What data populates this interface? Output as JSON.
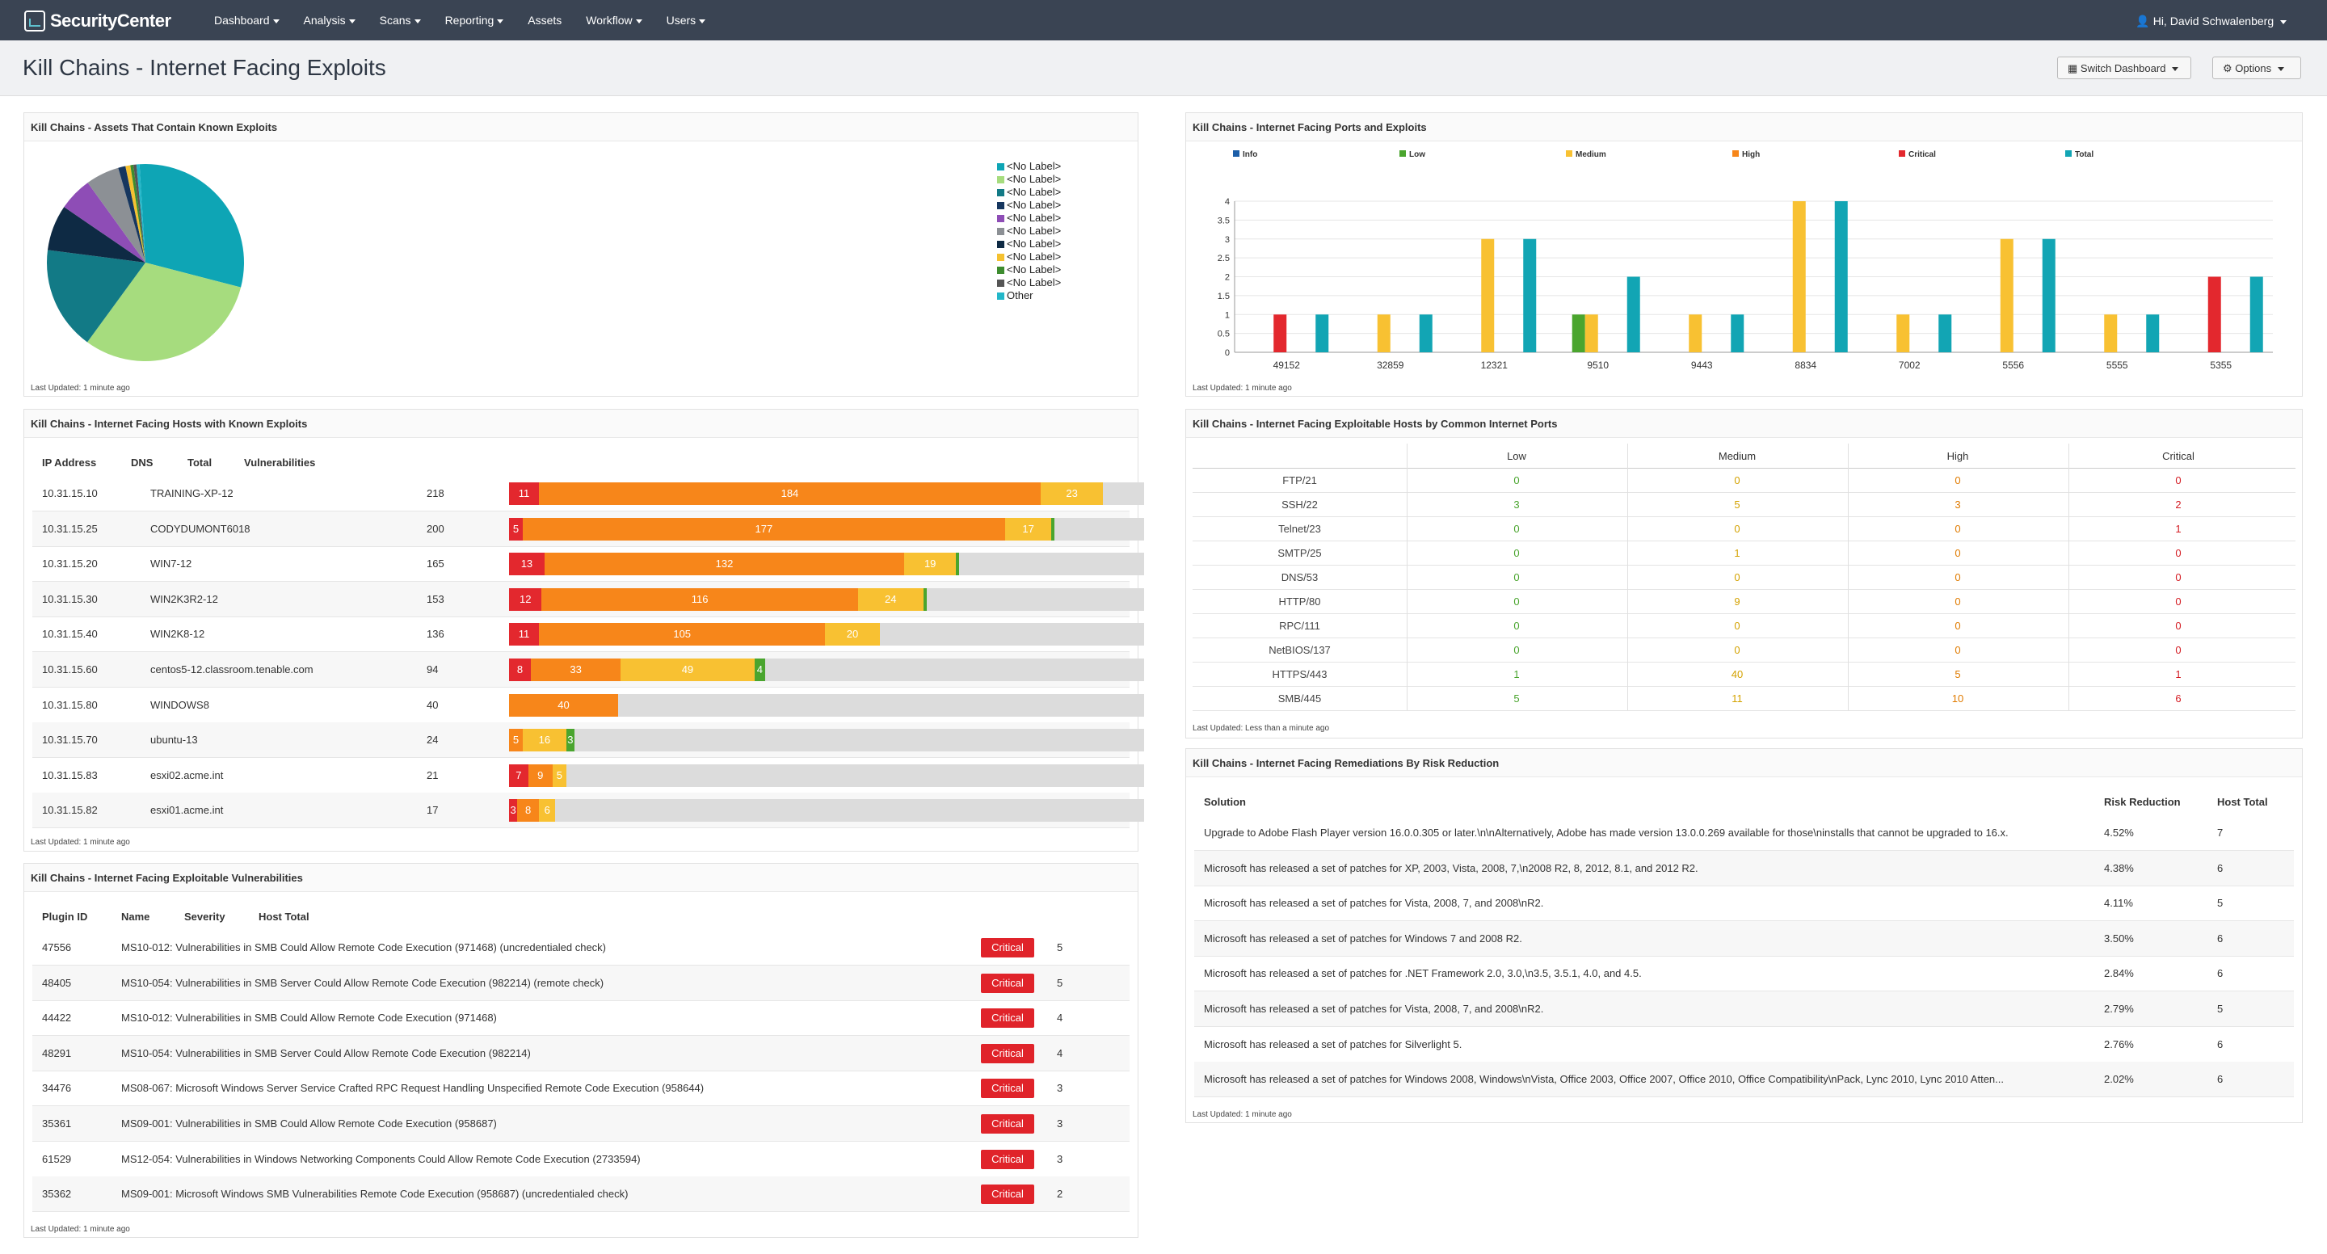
{
  "nav": {
    "brand": "SecurityCenter",
    "menu": [
      "Dashboard",
      "Analysis",
      "Scans",
      "Reporting",
      "Assets",
      "Workflow",
      "Users"
    ],
    "user": "Hi, David Schwalenberg"
  },
  "header": {
    "title": "Kill Chains - Internet Facing Exploits",
    "switch_btn": "Switch Dashboard",
    "options_btn": "Options"
  },
  "pie_panel": {
    "title": "Kill Chains - Assets That Contain Known Exploits",
    "updated": "Last Updated: 1 minute ago",
    "legend": [
      {
        "label": "<No Label>",
        "color": "#0ea5b5"
      },
      {
        "label": "<No Label>",
        "color": "#a6dc7e"
      },
      {
        "label": "<No Label>",
        "color": "#127a86"
      },
      {
        "label": "<No Label>",
        "color": "#16365f"
      },
      {
        "label": "<No Label>",
        "color": "#8e4db6"
      },
      {
        "label": "<No Label>",
        "color": "#8c9095"
      },
      {
        "label": "<No Label>",
        "color": "#0e2a44"
      },
      {
        "label": "<No Label>",
        "color": "#f5c130"
      },
      {
        "label": "<No Label>",
        "color": "#3d8c2f"
      },
      {
        "label": "<No Label>",
        "color": "#555"
      },
      {
        "label": "Other",
        "color": "#23b7c9"
      }
    ]
  },
  "chart_data": {
    "type": "bar",
    "title": "Kill Chains - Internet Facing Ports and Exploits",
    "categories": [
      "49152",
      "32859",
      "12321",
      "9510",
      "9443",
      "8834",
      "7002",
      "5556",
      "5555",
      "5355"
    ],
    "series": [
      {
        "name": "Info",
        "color": "#1c5ea8",
        "values": [
          0,
          0,
          0,
          0,
          0,
          0,
          0,
          0,
          0,
          0
        ]
      },
      {
        "name": "Low",
        "color": "#4aa52e",
        "values": [
          0,
          0,
          0,
          1,
          0,
          0,
          0,
          0,
          0,
          0
        ]
      },
      {
        "name": "Medium",
        "color": "#f8c132",
        "values": [
          0,
          1,
          3,
          1,
          1,
          4,
          1,
          3,
          1,
          0
        ]
      },
      {
        "name": "High",
        "color": "#f7861a",
        "values": [
          0,
          0,
          0,
          0,
          0,
          0,
          0,
          0,
          0,
          0
        ]
      },
      {
        "name": "Critical",
        "color": "#e3282e",
        "values": [
          1,
          0,
          0,
          0,
          0,
          0,
          0,
          0,
          0,
          2
        ]
      },
      {
        "name": "Total",
        "color": "#12a5b4",
        "values": [
          1,
          1,
          3,
          2,
          1,
          4,
          1,
          3,
          1,
          2
        ]
      }
    ],
    "ylim": [
      0,
      4
    ],
    "yticks": [
      "0",
      "0.5",
      "1",
      "1.5",
      "2",
      "2.5",
      "3",
      "3.5",
      "4"
    ],
    "updated": "Last Updated: 1 minute ago"
  },
  "hosts_panel": {
    "title": "Kill Chains - Internet Facing Hosts with Known Exploits",
    "headers": [
      "IP Address",
      "DNS",
      "Total",
      "Vulnerabilities"
    ],
    "max_total": 233,
    "rows": [
      {
        "ip": "10.31.15.10",
        "dns": "TRAINING-XP-12",
        "total": "218",
        "crit": 11,
        "high": 184,
        "med": 23,
        "low": 0
      },
      {
        "ip": "10.31.15.25",
        "dns": "CODYDUMONT6018",
        "total": "200",
        "crit": 5,
        "high": 177,
        "med": 17,
        "low": 1
      },
      {
        "ip": "10.31.15.20",
        "dns": "WIN7-12",
        "total": "165",
        "crit": 13,
        "high": 132,
        "med": 19,
        "low": 1
      },
      {
        "ip": "10.31.15.30",
        "dns": "WIN2K3R2-12",
        "total": "153",
        "crit": 12,
        "high": 116,
        "med": 24,
        "low": 1
      },
      {
        "ip": "10.31.15.40",
        "dns": "WIN2K8-12",
        "total": "136",
        "crit": 11,
        "high": 105,
        "med": 20,
        "low": 0
      },
      {
        "ip": "10.31.15.60",
        "dns": "centos5-12.classroom.tenable.com",
        "total": "94",
        "crit": 8,
        "high": 33,
        "med": 49,
        "low": 4
      },
      {
        "ip": "10.31.15.80",
        "dns": "WINDOWS8",
        "total": "40",
        "crit": 0,
        "high": 40,
        "med": 0,
        "low": 0
      },
      {
        "ip": "10.31.15.70",
        "dns": "ubuntu-13",
        "total": "24",
        "crit": 0,
        "high": 5,
        "med": 16,
        "low": 3
      },
      {
        "ip": "10.31.15.83",
        "dns": "esxi02.acme.int",
        "total": "21",
        "crit": 7,
        "high": 9,
        "med": 5,
        "low": 0
      },
      {
        "ip": "10.31.15.82",
        "dns": "esxi01.acme.int",
        "total": "17",
        "crit": 3,
        "high": 8,
        "med": 6,
        "low": 0
      }
    ],
    "updated": "Last Updated: 1 minute ago"
  },
  "vulns_panel": {
    "title": "Kill Chains - Internet Facing Exploitable Vulnerabilities",
    "headers": [
      "Plugin ID",
      "Name",
      "Severity",
      "Host Total"
    ],
    "rows": [
      {
        "id": "47556",
        "name": "MS10-012: Vulnerabilities in SMB Could Allow Remote Code Execution (971468) (uncredentialed check)",
        "sev": "Critical",
        "hosts": "5"
      },
      {
        "id": "48405",
        "name": "MS10-054: Vulnerabilities in SMB Server Could Allow Remote Code Execution (982214) (remote check)",
        "sev": "Critical",
        "hosts": "5"
      },
      {
        "id": "44422",
        "name": "MS10-012: Vulnerabilities in SMB Could Allow Remote Code Execution (971468)",
        "sev": "Critical",
        "hosts": "4"
      },
      {
        "id": "48291",
        "name": "MS10-054: Vulnerabilities in SMB Server Could Allow Remote Code Execution (982214)",
        "sev": "Critical",
        "hosts": "4"
      },
      {
        "id": "34476",
        "name": "MS08-067: Microsoft Windows Server Service Crafted RPC Request Handling Unspecified Remote Code Execution (958644)",
        "sev": "Critical",
        "hosts": "3"
      },
      {
        "id": "35361",
        "name": "MS09-001: Vulnerabilities in SMB Could Allow Remote Code Execution (958687)",
        "sev": "Critical",
        "hosts": "3"
      },
      {
        "id": "61529",
        "name": "MS12-054: Vulnerabilities in Windows Networking Components Could Allow Remote Code Execution (2733594)",
        "sev": "Critical",
        "hosts": "3"
      },
      {
        "id": "35362",
        "name": "MS09-001: Microsoft Windows SMB Vulnerabilities Remote Code Execution (958687) (uncredentialed check)",
        "sev": "Critical",
        "hosts": "2"
      }
    ],
    "updated": "Last Updated: 1 minute ago"
  },
  "ports_panel": {
    "title": "Kill Chains - Internet Facing Exploitable Hosts by Common Internet Ports",
    "headers": [
      "Low",
      "Medium",
      "High",
      "Critical"
    ],
    "colors": [
      "#4aa52e",
      "#d4a200",
      "#e07b00",
      "#d41b22"
    ],
    "rows": [
      {
        "port": "FTP/21",
        "v": [
          "0",
          "0",
          "0",
          "0"
        ]
      },
      {
        "port": "SSH/22",
        "v": [
          "3",
          "5",
          "3",
          "2"
        ]
      },
      {
        "port": "Telnet/23",
        "v": [
          "0",
          "0",
          "0",
          "1"
        ]
      },
      {
        "port": "SMTP/25",
        "v": [
          "0",
          "1",
          "0",
          "0"
        ]
      },
      {
        "port": "DNS/53",
        "v": [
          "0",
          "0",
          "0",
          "0"
        ]
      },
      {
        "port": "HTTP/80",
        "v": [
          "0",
          "9",
          "0",
          "0"
        ]
      },
      {
        "port": "RPC/111",
        "v": [
          "0",
          "0",
          "0",
          "0"
        ]
      },
      {
        "port": "NetBIOS/137",
        "v": [
          "0",
          "0",
          "0",
          "0"
        ]
      },
      {
        "port": "HTTPS/443",
        "v": [
          "1",
          "40",
          "5",
          "1"
        ]
      },
      {
        "port": "SMB/445",
        "v": [
          "5",
          "11",
          "10",
          "6"
        ]
      }
    ],
    "updated": "Last Updated: Less than a minute ago"
  },
  "remed_panel": {
    "title": "Kill Chains - Internet Facing Remediations By Risk Reduction",
    "headers": [
      "Solution",
      "Risk Reduction",
      "Host Total"
    ],
    "rows": [
      {
        "sol": "Upgrade to Adobe Flash Player version 16.0.0.305 or later.\\n\\nAlternatively, Adobe has made version 13.0.0.269 available for those\\ninstalls that cannot be upgraded to 16.x.",
        "risk": "4.52%",
        "hosts": "7"
      },
      {
        "sol": "Microsoft has released a set of patches for XP, 2003, Vista, 2008, 7,\\n2008 R2, 8, 2012, 8.1, and 2012 R2.",
        "risk": "4.38%",
        "hosts": "6"
      },
      {
        "sol": "Microsoft has released a set of patches for Vista, 2008, 7, and 2008\\nR2.",
        "risk": "4.11%",
        "hosts": "5"
      },
      {
        "sol": "Microsoft has released a set of patches for Windows 7 and 2008 R2.",
        "risk": "3.50%",
        "hosts": "6"
      },
      {
        "sol": "Microsoft has released a set of patches for .NET Framework 2.0, 3.0,\\n3.5, 3.5.1, 4.0, and 4.5.",
        "risk": "2.84%",
        "hosts": "6"
      },
      {
        "sol": "Microsoft has released a set of patches for Vista, 2008, 7, and 2008\\nR2.",
        "risk": "2.79%",
        "hosts": "5"
      },
      {
        "sol": "Microsoft has released a set of patches for Silverlight 5.",
        "risk": "2.76%",
        "hosts": "6"
      },
      {
        "sol": "Microsoft has released a set of patches for Windows 2008, Windows\\nVista, Office 2003, Office 2007, Office 2010, Office Compatibility\\nPack, Lync 2010, Lync 2010 Atten...",
        "risk": "2.02%",
        "hosts": "6"
      }
    ],
    "updated": "Last Updated: 1 minute ago"
  }
}
